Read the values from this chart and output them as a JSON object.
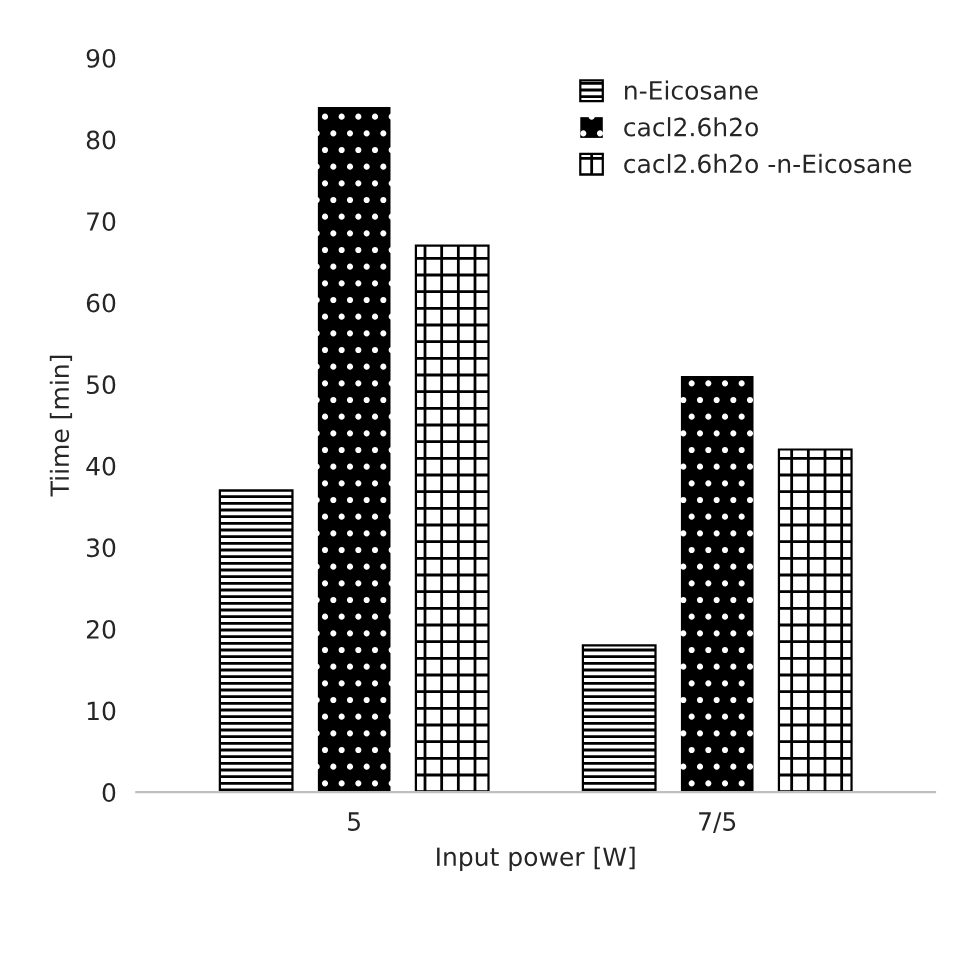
{
  "chart_data": {
    "type": "bar",
    "xlabel": "Input power [W]",
    "ylabel": "Tiime [min]",
    "categories": [
      "5",
      "7/5"
    ],
    "series": [
      {
        "name": "n-Eicosane",
        "color": "#000000",
        "values": [
          37,
          18
        ]
      },
      {
        "name": "cacl2.6h2o",
        "color": "#000000",
        "values": [
          84,
          51
        ]
      },
      {
        "name": "cacl2.6h2o -n-Eicosane",
        "color": "#000000",
        "values": [
          67,
          42
        ]
      }
    ],
    "ylim": [
      0,
      90
    ],
    "yticks": [
      0,
      10,
      20,
      30,
      40,
      50,
      60,
      70,
      80,
      90
    ],
    "grid": false,
    "legend": "top right"
  }
}
